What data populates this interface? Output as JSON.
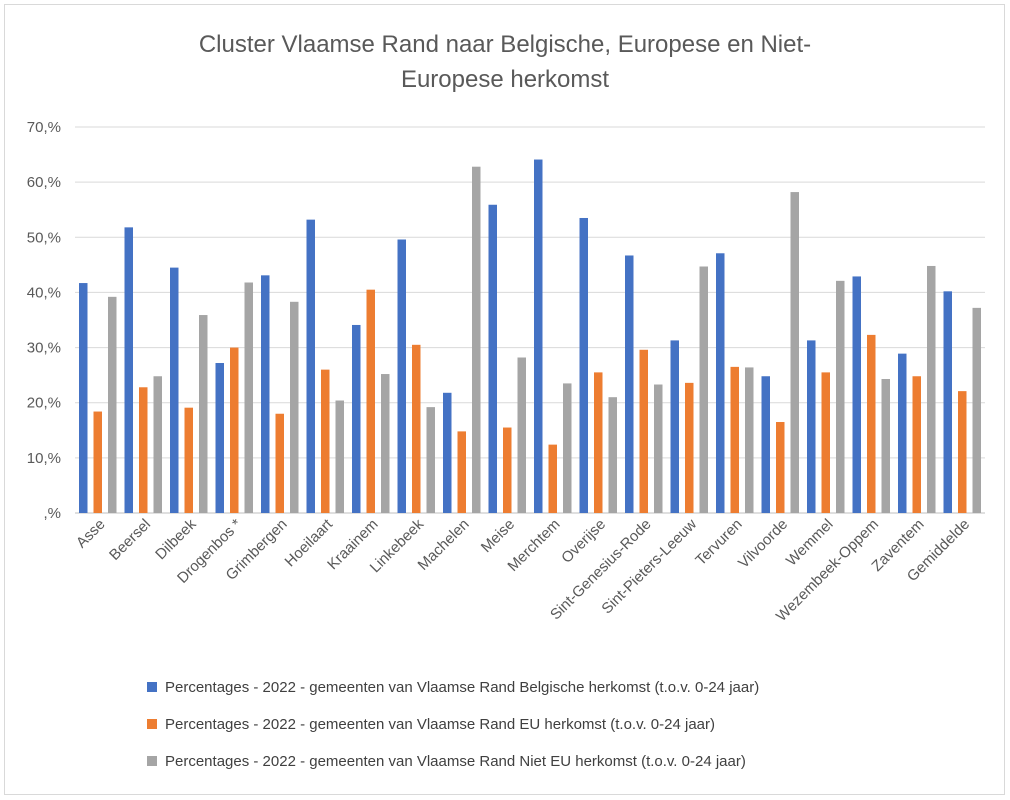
{
  "chart_data": {
    "type": "bar",
    "title_lines": [
      "Cluster Vlaamse Rand naar Belgische, Europese en Niet-",
      "Europese herkomst"
    ],
    "xlabel": "",
    "ylabel": "",
    "ylim": [
      0,
      70
    ],
    "y_ticks": [
      0,
      10,
      20,
      30,
      40,
      50,
      60,
      70
    ],
    "y_tick_labels": [
      ",%",
      "10,%",
      "20,%",
      "30,%",
      "40,%",
      "50,%",
      "60,%",
      "70,%"
    ],
    "grid": true,
    "legend_position": "bottom",
    "categories": [
      "Asse",
      "Beersel",
      "Dilbeek",
      "Drogenbos *",
      "Grimbergen",
      "Hoeilaart",
      "Kraainem",
      "Linkebeek",
      "Machelen",
      "Meise",
      "Merchtem",
      "Overijse",
      "Sint-Genesius-Rode",
      "Sint-Pieters-Leeuw",
      "Tervuren",
      "Vilvoorde",
      "Wemmel",
      "Wezembeek-Oppem",
      "Zaventem",
      "Gemiddelde"
    ],
    "series": [
      {
        "name": "Percentages - 2022 - gemeenten van Vlaamse Rand Belgische herkomst (t.o.v. 0-24 jaar)",
        "color": "#4472C4",
        "values": [
          41.7,
          51.8,
          44.5,
          27.2,
          43.1,
          53.2,
          34.1,
          49.6,
          21.8,
          55.9,
          64.1,
          53.5,
          46.7,
          31.3,
          47.1,
          24.8,
          31.3,
          42.9,
          28.9,
          40.2
        ]
      },
      {
        "name": "Percentages - 2022 - gemeenten van Vlaamse Rand EU herkomst (t.o.v. 0-24 jaar)",
        "color": "#ED7D31",
        "values": [
          18.4,
          22.8,
          19.1,
          30.0,
          18.0,
          26.0,
          40.5,
          30.5,
          14.8,
          15.5,
          12.4,
          25.5,
          29.6,
          23.6,
          26.5,
          16.5,
          25.5,
          32.3,
          24.8,
          22.1
        ]
      },
      {
        "name": "Percentages - 2022 - gemeenten van Vlaamse Rand Niet EU herkomst (t.o.v. 0-24 jaar)",
        "color": "#A5A5A5",
        "values": [
          39.2,
          24.8,
          35.9,
          41.8,
          38.3,
          20.4,
          25.2,
          19.2,
          62.8,
          28.2,
          23.5,
          21.0,
          23.3,
          44.7,
          26.4,
          58.2,
          42.1,
          24.3,
          44.8,
          37.2
        ]
      }
    ]
  }
}
